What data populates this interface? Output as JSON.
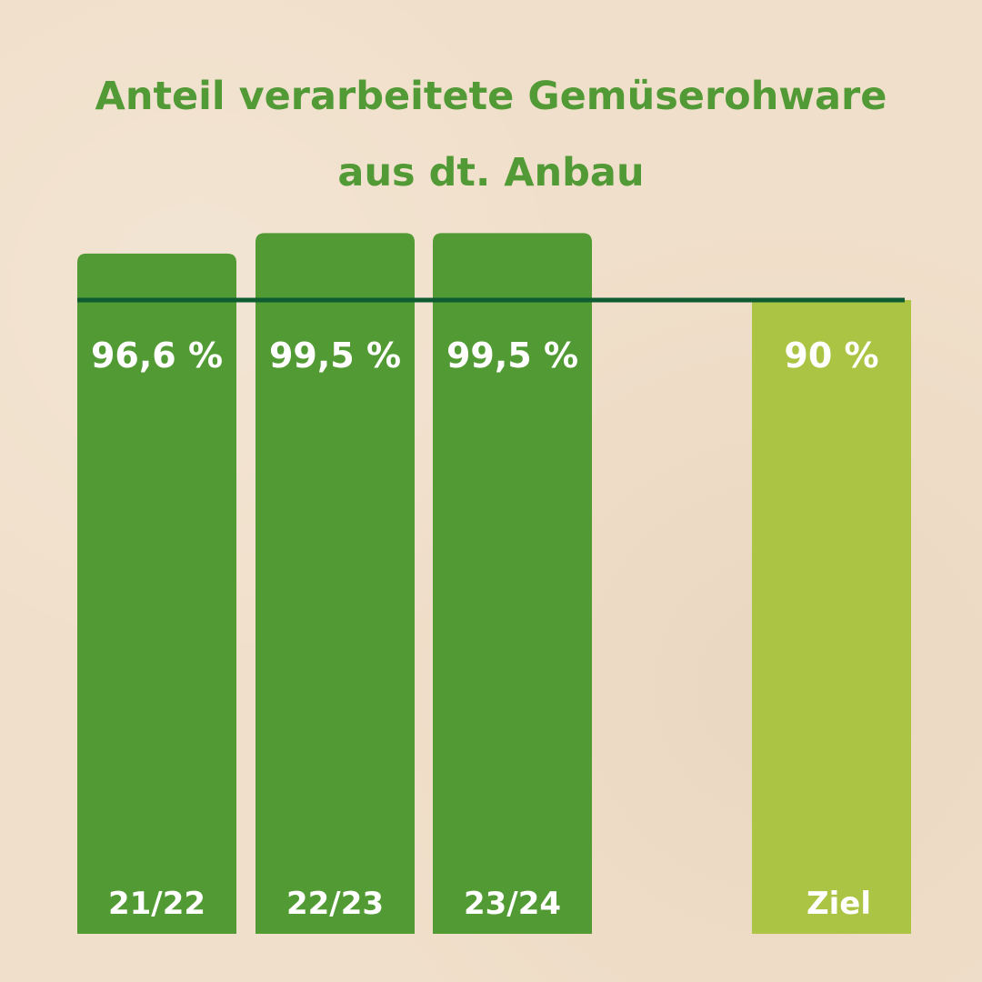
{
  "chart_data": {
    "type": "bar",
    "title": "Anteil verarbeitete Gemüserohware",
    "subtitle": "aus dt. Anbau",
    "categories": [
      "21/22",
      "22/23",
      "23/24",
      "Ziel"
    ],
    "values": [
      96.6,
      99.5,
      99.5,
      90
    ],
    "value_labels": [
      "96,6  %",
      "99,5 %",
      "99,5 %",
      "90 %"
    ],
    "target_value": 90,
    "ylim": [
      0,
      100
    ],
    "grid": false,
    "colors": {
      "bar": "#529a33",
      "target_bar": "#abc443",
      "target_line": "#0f5c33",
      "title": "#519a35",
      "label_text": "#ffffff"
    }
  }
}
